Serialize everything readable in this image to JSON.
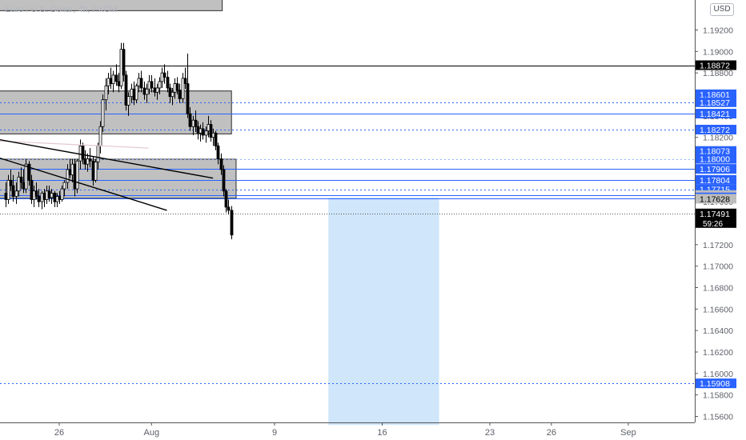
{
  "header": {
    "symbol": "Euro / U.S. Dollar, 4h, FXCM",
    "currency": "USD"
  },
  "colors": {
    "accent": "#2962ff",
    "zone_fill": "#bdbdbd",
    "target_fill": "#cfe6fb",
    "current_price_label": "#000000"
  },
  "chart_data": {
    "type": "candlestick",
    "ylim": [
      1.1552,
      1.1955
    ],
    "y_ticks": [
      "1.19200",
      "1.19000",
      "1.18800",
      "1.18600",
      "1.18400",
      "1.18200",
      "1.18000",
      "1.17800",
      "1.17600",
      "1.17400",
      "1.17200",
      "1.17000",
      "1.16800",
      "1.16600",
      "1.16400",
      "1.16200",
      "1.16000",
      "1.15800",
      "1.15600"
    ],
    "x_ticks": [
      {
        "label": "26",
        "day": 26
      },
      {
        "label": "Aug",
        "day": 32
      },
      {
        "label": "9",
        "day": 40
      },
      {
        "label": "16",
        "day": 47
      },
      {
        "label": "23",
        "day": 54
      },
      {
        "label": "26",
        "day": 58
      },
      {
        "label": "Sep",
        "day": 63
      }
    ],
    "candles": [
      {
        "day": 22.5,
        "o": 1.1768,
        "h": 1.1778,
        "l": 1.1755,
        "c": 1.1762
      },
      {
        "day": 22.67,
        "o": 1.1762,
        "h": 1.1785,
        "l": 1.1758,
        "c": 1.178
      },
      {
        "day": 22.83,
        "o": 1.178,
        "h": 1.179,
        "l": 1.177,
        "c": 1.1775
      },
      {
        "day": 23.0,
        "o": 1.1775,
        "h": 1.1785,
        "l": 1.176,
        "c": 1.1765
      },
      {
        "day": 23.17,
        "o": 1.1765,
        "h": 1.1778,
        "l": 1.1758,
        "c": 1.177
      },
      {
        "day": 23.33,
        "o": 1.177,
        "h": 1.1788,
        "l": 1.1765,
        "c": 1.1783
      },
      {
        "day": 23.5,
        "o": 1.1783,
        "h": 1.1792,
        "l": 1.1772,
        "c": 1.1778
      },
      {
        "day": 23.67,
        "o": 1.1778,
        "h": 1.179,
        "l": 1.1768,
        "c": 1.1772
      },
      {
        "day": 23.83,
        "o": 1.1772,
        "h": 1.18,
        "l": 1.1768,
        "c": 1.1795
      },
      {
        "day": 24.0,
        "o": 1.1795,
        "h": 1.1798,
        "l": 1.1775,
        "c": 1.178
      },
      {
        "day": 24.17,
        "o": 1.178,
        "h": 1.1785,
        "l": 1.1758,
        "c": 1.1762
      },
      {
        "day": 24.33,
        "o": 1.1762,
        "h": 1.1775,
        "l": 1.1755,
        "c": 1.177
      },
      {
        "day": 24.5,
        "o": 1.177,
        "h": 1.1778,
        "l": 1.1762,
        "c": 1.1765
      },
      {
        "day": 24.67,
        "o": 1.1765,
        "h": 1.1772,
        "l": 1.1755,
        "c": 1.176
      },
      {
        "day": 24.83,
        "o": 1.176,
        "h": 1.177,
        "l": 1.1753,
        "c": 1.1768
      },
      {
        "day": 25.0,
        "o": 1.1768,
        "h": 1.1772,
        "l": 1.1755,
        "c": 1.1762
      },
      {
        "day": 25.17,
        "o": 1.1762,
        "h": 1.1775,
        "l": 1.1758,
        "c": 1.177
      },
      {
        "day": 25.33,
        "o": 1.177,
        "h": 1.1775,
        "l": 1.176,
        "c": 1.1764
      },
      {
        "day": 25.5,
        "o": 1.1764,
        "h": 1.1772,
        "l": 1.1758,
        "c": 1.1768
      },
      {
        "day": 25.67,
        "o": 1.1768,
        "h": 1.177,
        "l": 1.1755,
        "c": 1.176
      },
      {
        "day": 25.83,
        "o": 1.176,
        "h": 1.1768,
        "l": 1.1755,
        "c": 1.1765
      },
      {
        "day": 26.0,
        "o": 1.1765,
        "h": 1.177,
        "l": 1.1758,
        "c": 1.1762
      },
      {
        "day": 26.17,
        "o": 1.1762,
        "h": 1.1775,
        "l": 1.176,
        "c": 1.1772
      },
      {
        "day": 26.33,
        "o": 1.1772,
        "h": 1.178,
        "l": 1.1765,
        "c": 1.1778
      },
      {
        "day": 26.5,
        "o": 1.1778,
        "h": 1.1795,
        "l": 1.1772,
        "c": 1.179
      },
      {
        "day": 26.67,
        "o": 1.179,
        "h": 1.18,
        "l": 1.1782,
        "c": 1.1785
      },
      {
        "day": 26.83,
        "o": 1.1785,
        "h": 1.18,
        "l": 1.1778,
        "c": 1.1795
      },
      {
        "day": 27.0,
        "o": 1.1795,
        "h": 1.18,
        "l": 1.1765,
        "c": 1.1772
      },
      {
        "day": 27.17,
        "o": 1.1772,
        "h": 1.18,
        "l": 1.1768,
        "c": 1.1798
      },
      {
        "day": 27.33,
        "o": 1.1798,
        "h": 1.1818,
        "l": 1.179,
        "c": 1.1812
      },
      {
        "day": 27.5,
        "o": 1.1812,
        "h": 1.1815,
        "l": 1.1795,
        "c": 1.18
      },
      {
        "day": 27.67,
        "o": 1.18,
        "h": 1.1808,
        "l": 1.179,
        "c": 1.1795
      },
      {
        "day": 27.83,
        "o": 1.1795,
        "h": 1.1805,
        "l": 1.1788,
        "c": 1.18
      },
      {
        "day": 28.0,
        "o": 1.18,
        "h": 1.181,
        "l": 1.1792,
        "c": 1.1798
      },
      {
        "day": 28.17,
        "o": 1.1798,
        "h": 1.1802,
        "l": 1.1775,
        "c": 1.178
      },
      {
        "day": 28.33,
        "o": 1.178,
        "h": 1.18,
        "l": 1.1778,
        "c": 1.1797
      },
      {
        "day": 28.5,
        "o": 1.1797,
        "h": 1.1815,
        "l": 1.179,
        "c": 1.1812
      },
      {
        "day": 28.67,
        "o": 1.1812,
        "h": 1.1835,
        "l": 1.1805,
        "c": 1.183
      },
      {
        "day": 28.83,
        "o": 1.183,
        "h": 1.186,
        "l": 1.1825,
        "c": 1.1855
      },
      {
        "day": 29.0,
        "o": 1.1855,
        "h": 1.1875,
        "l": 1.1845,
        "c": 1.1868
      },
      {
        "day": 29.17,
        "o": 1.1868,
        "h": 1.188,
        "l": 1.186,
        "c": 1.1875
      },
      {
        "day": 29.33,
        "o": 1.1875,
        "h": 1.1885,
        "l": 1.1865,
        "c": 1.187
      },
      {
        "day": 29.5,
        "o": 1.187,
        "h": 1.1882,
        "l": 1.1862,
        "c": 1.1878
      },
      {
        "day": 29.67,
        "o": 1.1878,
        "h": 1.1888,
        "l": 1.1868,
        "c": 1.1872
      },
      {
        "day": 29.83,
        "o": 1.1872,
        "h": 1.188,
        "l": 1.1862,
        "c": 1.1868
      },
      {
        "day": 30.0,
        "o": 1.1868,
        "h": 1.1908,
        "l": 1.1865,
        "c": 1.1902
      },
      {
        "day": 30.17,
        "o": 1.1902,
        "h": 1.1908,
        "l": 1.1872,
        "c": 1.1878
      },
      {
        "day": 30.33,
        "o": 1.1878,
        "h": 1.1882,
        "l": 1.1845,
        "c": 1.185
      },
      {
        "day": 30.5,
        "o": 1.185,
        "h": 1.1862,
        "l": 1.184,
        "c": 1.1858
      },
      {
        "day": 30.67,
        "o": 1.1858,
        "h": 1.187,
        "l": 1.1852,
        "c": 1.1865
      },
      {
        "day": 30.83,
        "o": 1.1865,
        "h": 1.1872,
        "l": 1.185,
        "c": 1.1855
      },
      {
        "day": 31.0,
        "o": 1.1855,
        "h": 1.187,
        "l": 1.1852,
        "c": 1.1868
      },
      {
        "day": 31.17,
        "o": 1.1868,
        "h": 1.188,
        "l": 1.1862,
        "c": 1.1875
      },
      {
        "day": 31.33,
        "o": 1.1875,
        "h": 1.1882,
        "l": 1.1862,
        "c": 1.1866
      },
      {
        "day": 31.5,
        "o": 1.1866,
        "h": 1.1872,
        "l": 1.1855,
        "c": 1.186
      },
      {
        "day": 31.67,
        "o": 1.186,
        "h": 1.187,
        "l": 1.1852,
        "c": 1.1865
      },
      {
        "day": 31.83,
        "o": 1.1865,
        "h": 1.1878,
        "l": 1.186,
        "c": 1.1872
      },
      {
        "day": 32.0,
        "o": 1.1872,
        "h": 1.1878,
        "l": 1.1862,
        "c": 1.1866
      },
      {
        "day": 32.17,
        "o": 1.1866,
        "h": 1.1875,
        "l": 1.1858,
        "c": 1.1862
      },
      {
        "day": 32.33,
        "o": 1.1862,
        "h": 1.187,
        "l": 1.1855,
        "c": 1.1866
      },
      {
        "day": 32.5,
        "o": 1.1866,
        "h": 1.1876,
        "l": 1.186,
        "c": 1.1872
      },
      {
        "day": 32.67,
        "o": 1.1872,
        "h": 1.1885,
        "l": 1.1866,
        "c": 1.188
      },
      {
        "day": 32.83,
        "o": 1.188,
        "h": 1.1888,
        "l": 1.187,
        "c": 1.1876
      },
      {
        "day": 33.0,
        "o": 1.1876,
        "h": 1.1882,
        "l": 1.1862,
        "c": 1.1866
      },
      {
        "day": 33.17,
        "o": 1.1866,
        "h": 1.187,
        "l": 1.1852,
        "c": 1.1858
      },
      {
        "day": 33.33,
        "o": 1.1858,
        "h": 1.1866,
        "l": 1.185,
        "c": 1.1862
      },
      {
        "day": 33.5,
        "o": 1.1862,
        "h": 1.1875,
        "l": 1.1856,
        "c": 1.187
      },
      {
        "day": 33.67,
        "o": 1.187,
        "h": 1.1876,
        "l": 1.186,
        "c": 1.1864
      },
      {
        "day": 33.83,
        "o": 1.1864,
        "h": 1.187,
        "l": 1.1852,
        "c": 1.1856
      },
      {
        "day": 34.0,
        "o": 1.1856,
        "h": 1.188,
        "l": 1.1852,
        "c": 1.1875
      },
      {
        "day": 34.17,
        "o": 1.1875,
        "h": 1.1885,
        "l": 1.1865,
        "c": 1.187
      },
      {
        "day": 34.33,
        "o": 1.187,
        "h": 1.1898,
        "l": 1.1838,
        "c": 1.1842
      },
      {
        "day": 34.5,
        "o": 1.1842,
        "h": 1.1848,
        "l": 1.1826,
        "c": 1.183
      },
      {
        "day": 34.67,
        "o": 1.183,
        "h": 1.184,
        "l": 1.1822,
        "c": 1.1836
      },
      {
        "day": 34.83,
        "o": 1.1836,
        "h": 1.1845,
        "l": 1.1825,
        "c": 1.183
      },
      {
        "day": 35.0,
        "o": 1.183,
        "h": 1.1835,
        "l": 1.1818,
        "c": 1.1824
      },
      {
        "day": 35.17,
        "o": 1.1824,
        "h": 1.1832,
        "l": 1.1816,
        "c": 1.1828
      },
      {
        "day": 35.33,
        "o": 1.1828,
        "h": 1.1834,
        "l": 1.1818,
        "c": 1.1822
      },
      {
        "day": 35.5,
        "o": 1.1822,
        "h": 1.183,
        "l": 1.1815,
        "c": 1.1826
      },
      {
        "day": 35.67,
        "o": 1.1826,
        "h": 1.184,
        "l": 1.182,
        "c": 1.1832
      },
      {
        "day": 35.83,
        "o": 1.1832,
        "h": 1.1836,
        "l": 1.1816,
        "c": 1.182
      },
      {
        "day": 36.0,
        "o": 1.182,
        "h": 1.1828,
        "l": 1.1812,
        "c": 1.1824
      },
      {
        "day": 36.17,
        "o": 1.1824,
        "h": 1.1826,
        "l": 1.1808,
        "c": 1.1812
      },
      {
        "day": 36.33,
        "o": 1.1812,
        "h": 1.1815,
        "l": 1.1795,
        "c": 1.18
      },
      {
        "day": 36.5,
        "o": 1.18,
        "h": 1.1805,
        "l": 1.1785,
        "c": 1.179
      },
      {
        "day": 36.67,
        "o": 1.179,
        "h": 1.1794,
        "l": 1.1765,
        "c": 1.177
      },
      {
        "day": 36.83,
        "o": 1.177,
        "h": 1.1772,
        "l": 1.175,
        "c": 1.1755
      },
      {
        "day": 37.0,
        "o": 1.1755,
        "h": 1.1762,
        "l": 1.1748,
        "c": 1.1752
      },
      {
        "day": 37.17,
        "o": 1.1752,
        "h": 1.1756,
        "l": 1.1725,
        "c": 1.1729
      }
    ],
    "price_levels": [
      {
        "price": 1.18872,
        "label": "1.18872",
        "style": "solid",
        "color": "#000000",
        "label_bg": "#000000"
      },
      {
        "price": 1.18601,
        "label": "1.18601",
        "style": "none",
        "color": "#2962ff",
        "label_bg": "#2962ff"
      },
      {
        "price": 1.18527,
        "label": "1.18527",
        "style": "dotted",
        "color": "#2962ff",
        "label_bg": "#2962ff"
      },
      {
        "price": 1.18421,
        "label": "1.18421",
        "style": "solid",
        "color": "#2962ff",
        "label_bg": "#2962ff"
      },
      {
        "price": 1.18272,
        "label": "1.18272",
        "style": "dotted",
        "color": "#2962ff",
        "label_bg": "#2962ff"
      },
      {
        "price": 1.18073,
        "label": "1.18073",
        "style": "none",
        "color": "#2962ff",
        "label_bg": "#2962ff"
      },
      {
        "price": 1.18,
        "label": "1.18000",
        "style": "dotted",
        "color": "#90b4ff",
        "label_bg": "#2962ff"
      },
      {
        "price": 1.17906,
        "label": "1.17906",
        "style": "solid",
        "color": "#2962ff",
        "label_bg": "#2962ff"
      },
      {
        "price": 1.17804,
        "label": "1.17804",
        "style": "solid",
        "color": "#2962ff",
        "label_bg": "#2962ff"
      },
      {
        "price": 1.17715,
        "label": "1.17715",
        "style": "dotted",
        "color": "#2962ff",
        "label_bg": "#2962ff"
      },
      {
        "price": 1.17662,
        "label": "1.17662",
        "style": "solid",
        "color": "#2962ff",
        "label_bg": "#bdbdbd"
      },
      {
        "price": 1.1764,
        "label": "1.17640",
        "style": "none",
        "color": "#2962ff",
        "label_bg": "#2962ff"
      },
      {
        "price": 1.17628,
        "label": "1.17628",
        "style": "solid",
        "color": "#2962ff",
        "label_bg": "#bdbdbd"
      },
      {
        "price": 1.15908,
        "label": "1.15908",
        "style": "dotted",
        "color": "#2962ff",
        "label_bg": "#2962ff"
      }
    ],
    "current_price": {
      "price": 1.17491,
      "label": "1.17491",
      "countdown": "59:26"
    },
    "zones": [
      {
        "x0": 14,
        "x1": 36.6,
        "y0": 1.1938,
        "y1": 1.1955
      },
      {
        "x0": 20.5,
        "x1": 37.2,
        "y0": 1.18232,
        "y1": 1.18632
      },
      {
        "x0": 20.5,
        "x1": 37.5,
        "y0": 1.17632,
        "y1": 1.17996
      }
    ],
    "target_zone": {
      "x0": 43.5,
      "x1": 50.7,
      "y0": 1.1552,
      "y1": 1.1764
    },
    "trendlines": [
      {
        "x0": 20.0,
        "y0": 1.1818,
        "x1": 31.8,
        "y1": 1.181,
        "color": "#e0c6d4",
        "width": 1.2
      },
      {
        "x0": 20.5,
        "y0": 1.1822,
        "x1": 36.0,
        "y1": 1.1782,
        "color": "#000000",
        "width": 1.4
      },
      {
        "x0": 20.5,
        "y0": 1.1808,
        "x1": 33.0,
        "y1": 1.1752,
        "color": "#000000",
        "width": 1.4
      }
    ]
  }
}
